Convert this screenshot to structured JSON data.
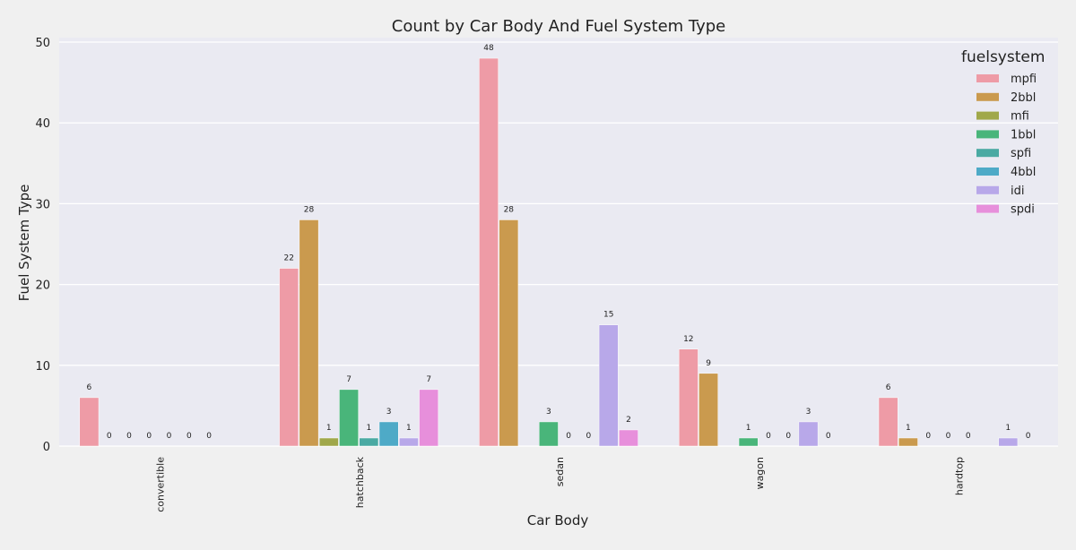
{
  "chart_data": {
    "type": "bar",
    "title": "Count by Car Body And Fuel System Type",
    "xlabel": "Car Body",
    "ylabel": "Fuel System Type",
    "categories": [
      "convertible",
      "hatchback",
      "sedan",
      "wagon",
      "hardtop"
    ],
    "ylim": [
      0,
      50
    ],
    "yticks": [
      0,
      10,
      20,
      30,
      40,
      50
    ],
    "grid": true,
    "legend": {
      "title": "fuelsystem",
      "placement": "top-right"
    },
    "series": [
      {
        "name": "mpfi",
        "color": "#ee9ba6",
        "values": [
          6,
          22,
          48,
          12,
          6
        ]
      },
      {
        "name": "2bbl",
        "color": "#ca9a4e",
        "values": [
          0,
          28,
          28,
          9,
          1
        ]
      },
      {
        "name": "mfi",
        "color": "#a0a84a",
        "values": [
          0,
          1,
          null,
          null,
          0
        ]
      },
      {
        "name": "1bbl",
        "color": "#49b57a",
        "values": [
          0,
          7,
          3,
          1,
          0
        ]
      },
      {
        "name": "spfi",
        "color": "#4aaaa3",
        "values": [
          0,
          1,
          0,
          0,
          0
        ]
      },
      {
        "name": "4bbl",
        "color": "#4eaac7",
        "values": [
          0,
          3,
          0,
          0,
          null
        ]
      },
      {
        "name": "idi",
        "color": "#b8a8e9",
        "values": [
          0,
          1,
          15,
          3,
          1
        ]
      },
      {
        "name": "spdi",
        "color": "#e78fdb",
        "values": [
          null,
          7,
          2,
          0,
          0
        ]
      }
    ]
  }
}
